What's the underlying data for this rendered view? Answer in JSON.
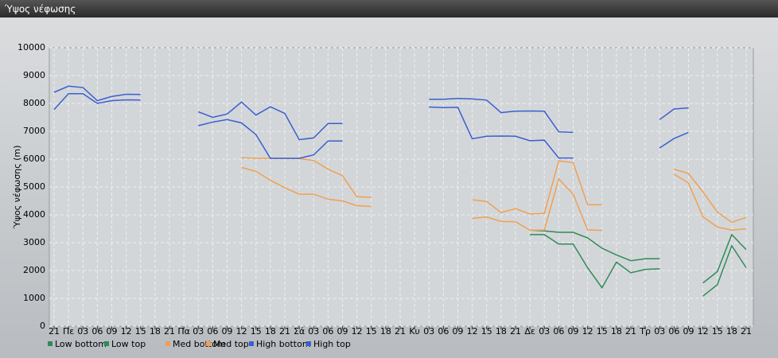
{
  "chart_data": {
    "type": "line",
    "title": "Ύψος νέφωσης",
    "y_label": "Ύψος νέφωσης (m)",
    "categories": [
      "21",
      "Πε",
      "03",
      "06",
      "09",
      "12",
      "15",
      "18",
      "21",
      "Πα",
      "03",
      "06",
      "09",
      "12",
      "15",
      "18",
      "21",
      "Σά",
      "03",
      "06",
      "09",
      "12",
      "15",
      "18",
      "21",
      "Κυ",
      "03",
      "06",
      "09",
      "12",
      "15",
      "18",
      "21",
      "Δε",
      "03",
      "06",
      "09",
      "12",
      "15",
      "18",
      "21",
      "Τρ",
      "03",
      "06",
      "09",
      "12",
      "15",
      "18",
      "21"
    ],
    "ylim": [
      0,
      10000
    ],
    "yticks": [
      0,
      1000,
      2000,
      3000,
      4000,
      5000,
      6000,
      7000,
      8000,
      9000,
      10000
    ],
    "grid": true,
    "legend": "bottom",
    "series": [
      {
        "name": "Low bottom",
        "color": "#2e8b57",
        "values": [
          null,
          null,
          null,
          null,
          null,
          null,
          null,
          null,
          null,
          null,
          null,
          null,
          null,
          null,
          null,
          null,
          null,
          null,
          null,
          null,
          null,
          null,
          null,
          null,
          null,
          null,
          null,
          null,
          null,
          null,
          null,
          null,
          null,
          3290,
          3290,
          2950,
          2950,
          2100,
          1380,
          2300,
          1920,
          2040,
          2060,
          null,
          null,
          1080,
          1490,
          2890,
          2100
        ]
      },
      {
        "name": "Low top",
        "color": "#2e8b57",
        "values": [
          null,
          null,
          null,
          null,
          null,
          null,
          null,
          null,
          null,
          null,
          null,
          null,
          null,
          null,
          null,
          null,
          null,
          null,
          null,
          null,
          null,
          null,
          null,
          null,
          null,
          null,
          null,
          null,
          null,
          null,
          null,
          null,
          null,
          3450,
          3420,
          3370,
          3370,
          3170,
          2800,
          2560,
          2350,
          2420,
          2420,
          null,
          null,
          1550,
          1960,
          3290,
          2750
        ]
      },
      {
        "name": "Med bottom",
        "color": "#f0a050",
        "values": [
          null,
          null,
          null,
          null,
          null,
          null,
          null,
          null,
          null,
          null,
          null,
          null,
          null,
          5700,
          5560,
          5240,
          4970,
          4740,
          4740,
          4560,
          4500,
          4330,
          4300,
          null,
          null,
          null,
          null,
          null,
          null,
          3870,
          3920,
          3760,
          3750,
          3450,
          3450,
          5290,
          4740,
          3460,
          3440,
          null,
          null,
          null,
          null,
          5460,
          5140,
          3930,
          3560,
          3450,
          3500
        ]
      },
      {
        "name": "Med top",
        "color": "#f0a050",
        "values": [
          null,
          null,
          null,
          null,
          null,
          null,
          null,
          null,
          null,
          null,
          null,
          null,
          null,
          6050,
          6030,
          6030,
          6030,
          6020,
          5950,
          5640,
          5400,
          4650,
          4630,
          null,
          null,
          null,
          null,
          null,
          null,
          4540,
          4480,
          4080,
          4220,
          4030,
          4050,
          5940,
          5870,
          4360,
          4360,
          null,
          null,
          null,
          null,
          5640,
          5480,
          4820,
          4100,
          3730,
          3910
        ]
      },
      {
        "name": "High bottom",
        "color": "#3a5fd0",
        "values": [
          7780,
          8350,
          8350,
          8000,
          8100,
          8130,
          8120,
          null,
          null,
          null,
          7200,
          7330,
          7420,
          7300,
          6880,
          6030,
          6030,
          6030,
          6150,
          6650,
          6650,
          null,
          null,
          null,
          null,
          null,
          7870,
          7850,
          7860,
          6730,
          6820,
          6830,
          6820,
          6660,
          6680,
          6040,
          6040,
          null,
          null,
          null,
          null,
          null,
          6400,
          6740,
          6960,
          null,
          null,
          null,
          null
        ]
      },
      {
        "name": "High top",
        "color": "#3a5fd0",
        "values": [
          8400,
          8620,
          8570,
          8100,
          8250,
          8330,
          8320,
          null,
          null,
          null,
          7700,
          7500,
          7620,
          8050,
          7580,
          7880,
          7640,
          6700,
          6760,
          7280,
          7280,
          null,
          null,
          null,
          null,
          null,
          8150,
          8150,
          8180,
          8160,
          8120,
          7670,
          7720,
          7730,
          7720,
          6980,
          6960,
          null,
          null,
          null,
          null,
          null,
          7420,
          7800,
          7840,
          null,
          null,
          null,
          null
        ]
      }
    ]
  }
}
